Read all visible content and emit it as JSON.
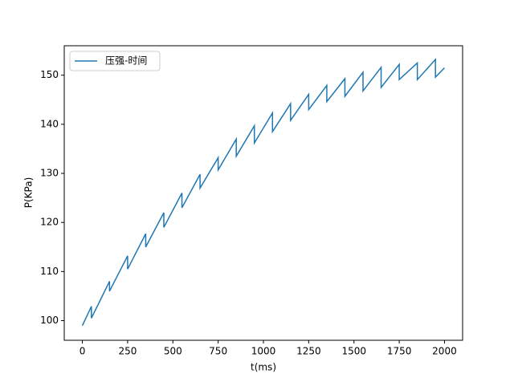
{
  "chart_data": {
    "type": "line",
    "xlabel": "t(ms)",
    "ylabel": "P(KPa)",
    "x": [
      0,
      50,
      50,
      150,
      150,
      250,
      250,
      350,
      350,
      450,
      450,
      550,
      550,
      650,
      650,
      750,
      750,
      850,
      850,
      950,
      950,
      1050,
      1050,
      1150,
      1150,
      1250,
      1250,
      1350,
      1350,
      1450,
      1450,
      1550,
      1550,
      1650,
      1650,
      1750,
      1750,
      1850,
      1850,
      1950,
      1950,
      2000
    ],
    "series": [
      {
        "name": "压强-时间",
        "color": "#1f77b4",
        "values": [
          99,
          102.9,
          100.5,
          108,
          106,
          113.2,
          110.5,
          117.7,
          115,
          122,
          119,
          126,
          123,
          129.8,
          127,
          133.2,
          130.7,
          137,
          133.5,
          139.7,
          136.2,
          142.3,
          138.5,
          144.2,
          140.8,
          146.1,
          143,
          147.9,
          144.6,
          149.3,
          145.7,
          150.6,
          146.8,
          151.6,
          147.5,
          152.2,
          149.1,
          152.5,
          149.1,
          153.2,
          149.6,
          151.5
        ]
      }
    ],
    "xlim": [
      -100,
      2100
    ],
    "ylim": [
      96,
      156
    ],
    "xticks": [
      0,
      250,
      500,
      750,
      1000,
      1250,
      1500,
      1750,
      2000
    ],
    "yticks": [
      100,
      110,
      120,
      130,
      140,
      150
    ],
    "grid": false,
    "legend": "upper left"
  }
}
